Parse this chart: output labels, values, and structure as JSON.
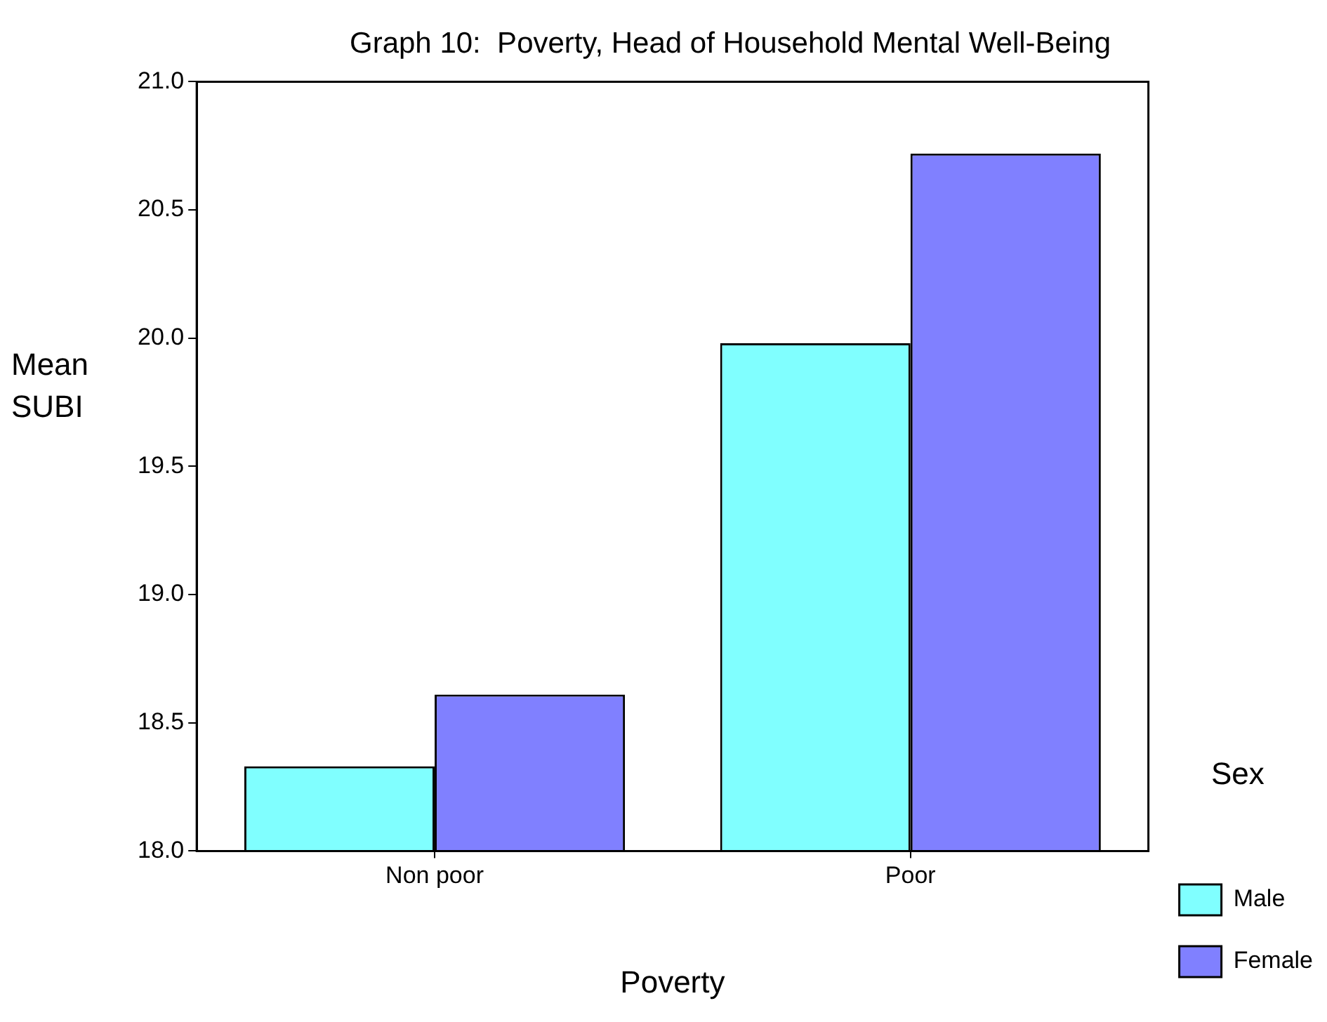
{
  "chart_data": {
    "type": "bar",
    "title": "Graph 10:  Poverty, Head of Household Mental Well-Being",
    "xlabel": "Poverty",
    "ylabel": "Mean SUBI",
    "legend_title": "Sex",
    "categories": [
      "Non poor",
      "Poor"
    ],
    "series": [
      {
        "name": "Male",
        "color": "#80ffff",
        "values": [
          18.33,
          19.98
        ]
      },
      {
        "name": "Female",
        "color": "#8080ff",
        "values": [
          18.61,
          20.72
        ]
      }
    ],
    "ylim": [
      18,
      21
    ],
    "yticks": [
      {
        "value": 18,
        "label": "18.0"
      },
      {
        "value": 18.5,
        "label": "18.5"
      },
      {
        "value": 19,
        "label": "19.0"
      },
      {
        "value": 19.5,
        "label": "19.5"
      },
      {
        "value": 20,
        "label": "20.0"
      },
      {
        "value": 20.5,
        "label": "20.5"
      },
      {
        "value": 21,
        "label": "21.0"
      }
    ],
    "grid": false,
    "legend": "right"
  }
}
